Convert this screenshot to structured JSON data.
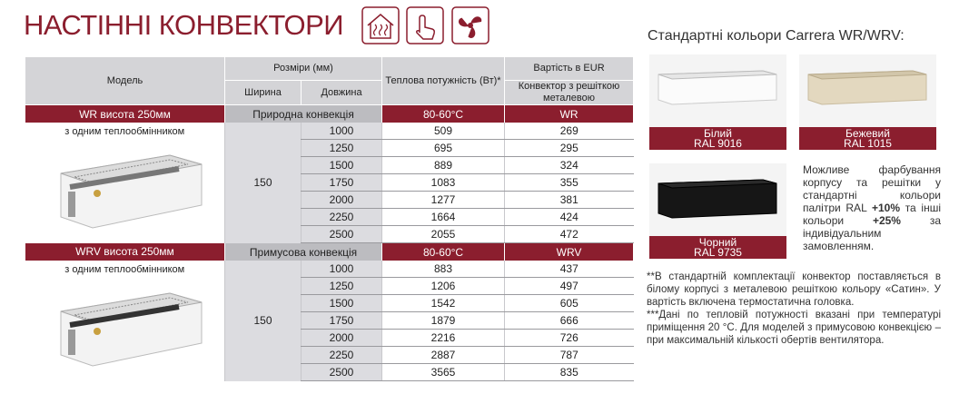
{
  "header": {
    "title": "НАСТІННІ КОНВЕКТОРИ"
  },
  "table": {
    "columns": {
      "model": "Модель",
      "dimensions": "Розміри (мм)",
      "width": "Ширина",
      "length": "Довжина",
      "power": "Теплова потужність (Вт)*",
      "price": "Вартість в EUR",
      "price_sub": "Конвектор з решіткою металевою"
    },
    "sections": [
      {
        "name": "WR висота 250мм",
        "convection": "Природна конвекція",
        "temperature": "80-60°C",
        "code": "WR",
        "model_note": "з одним теплообмінником",
        "width": 150,
        "rows": [
          [
            1000,
            509,
            269
          ],
          [
            1250,
            695,
            295
          ],
          [
            1500,
            889,
            324
          ],
          [
            1750,
            1083,
            355
          ],
          [
            2000,
            1277,
            381
          ],
          [
            2250,
            1664,
            424
          ],
          [
            2500,
            2055,
            472
          ]
        ]
      },
      {
        "name": "WRV висота 250мм",
        "convection": "Примусова конвекція",
        "temperature": "80-60°C",
        "code": "WRV",
        "model_note": "з одним теплообмінником",
        "width": 150,
        "rows": [
          [
            1000,
            883,
            437
          ],
          [
            1250,
            1206,
            497
          ],
          [
            1500,
            1542,
            605
          ],
          [
            1750,
            1879,
            666
          ],
          [
            2000,
            2216,
            726
          ],
          [
            2250,
            2887,
            787
          ],
          [
            2500,
            3565,
            835
          ]
        ]
      }
    ]
  },
  "colors": {
    "title": "Стандартні кольори Carrera WR/WRV:",
    "swatches": [
      {
        "name": "Білий",
        "ral": "RAL 9016"
      },
      {
        "name": "Бежевий",
        "ral": "RAL 1015"
      },
      {
        "name": "Чорний",
        "ral": "RAL 9735"
      }
    ],
    "note": [
      "Можливе фарбування корпусу та решітки у стандартні кольори палітри RAL ",
      "+10%",
      " та інші кольори ",
      "+25%",
      " за індивідуальним замовленням."
    ]
  },
  "footnotes": [
    "**В стандартній комплектації конвектор поставляється в білому корпусі з металевою решіткою кольору «Сатин». У вартість включена термостатична головка.",
    "***Дані по тепловій потужності вказані при температурі приміщення 20 °С. Для моделей з примусовою конвекцією – при максимальній кількості обертів вентилятора."
  ]
}
